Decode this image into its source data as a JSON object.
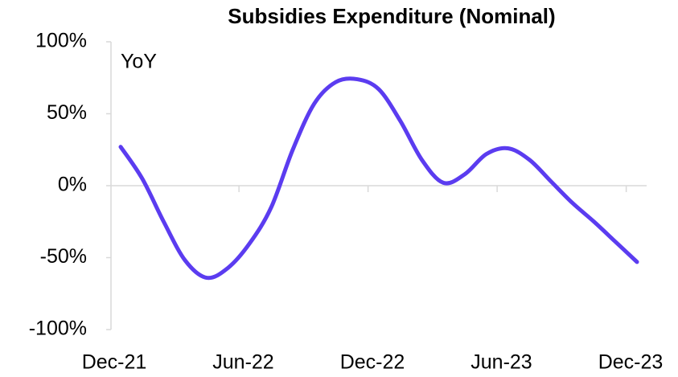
{
  "chart_data": {
    "type": "line",
    "title": "Subsidies Expenditure (Nominal)",
    "annotation": "YoY",
    "categories": [
      "Dec-21",
      null,
      null,
      null,
      null,
      null,
      "Jun-22",
      null,
      null,
      null,
      null,
      null,
      "Dec-22",
      null,
      null,
      null,
      null,
      null,
      "Jun-23",
      null,
      null,
      null,
      null,
      null,
      "Dec-23"
    ],
    "series": [
      {
        "name": "YoY",
        "color": "#5b3cf0",
        "values": [
          27,
          5,
          -25,
          -52,
          -64,
          -57,
          -40,
          -15,
          25,
          57,
          72,
          74,
          67,
          45,
          18,
          2,
          8,
          22,
          26,
          18,
          3,
          -12,
          -25,
          -39,
          -53
        ]
      }
    ],
    "ylim": [
      -100,
      100
    ],
    "yticks": [
      {
        "value": -100,
        "label": "-100%"
      },
      {
        "value": -50,
        "label": "-50%"
      },
      {
        "value": 0,
        "label": "0%"
      },
      {
        "value": 50,
        "label": "50%"
      },
      {
        "value": 100,
        "label": "100%"
      }
    ],
    "legend": false,
    "grid": false
  }
}
